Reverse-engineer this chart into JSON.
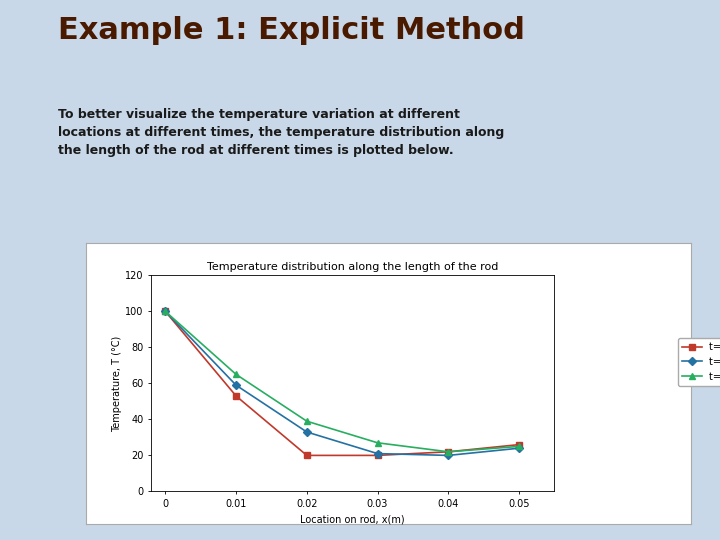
{
  "title": "Example 1: Explicit Method",
  "subtitle": "To better visualize the temperature variation at different\nlocations at different times, the temperature distribution along\nthe length of the rod at different times is plotted below.",
  "chart_title": "Temperature distribution along the length of the rod",
  "xlabel": "Location on rod, x(m)",
  "ylabel": "Temperature, T (°C)",
  "x": [
    0,
    0.01,
    0.02,
    0.03,
    0.04,
    0.05
  ],
  "t3": [
    100,
    53,
    20,
    20,
    22,
    26
  ],
  "t6": [
    100,
    59,
    33,
    21,
    20,
    24
  ],
  "t9": [
    100,
    65,
    39,
    27,
    22,
    25
  ],
  "ylim": [
    0,
    120
  ],
  "xlim": [
    -0.002,
    0.055
  ],
  "color_t3": "#c0392b",
  "color_t6": "#2471a3",
  "color_t9": "#27ae60",
  "bg_slide": "#c8d8e8",
  "title_color": "#4a1a00",
  "subtitle_color": "#1a1a1a",
  "title_fontsize": 22,
  "subtitle_fontsize": 9,
  "chart_title_fontsize": 8,
  "axis_label_fontsize": 7,
  "tick_fontsize": 7,
  "legend_fontsize": 7
}
